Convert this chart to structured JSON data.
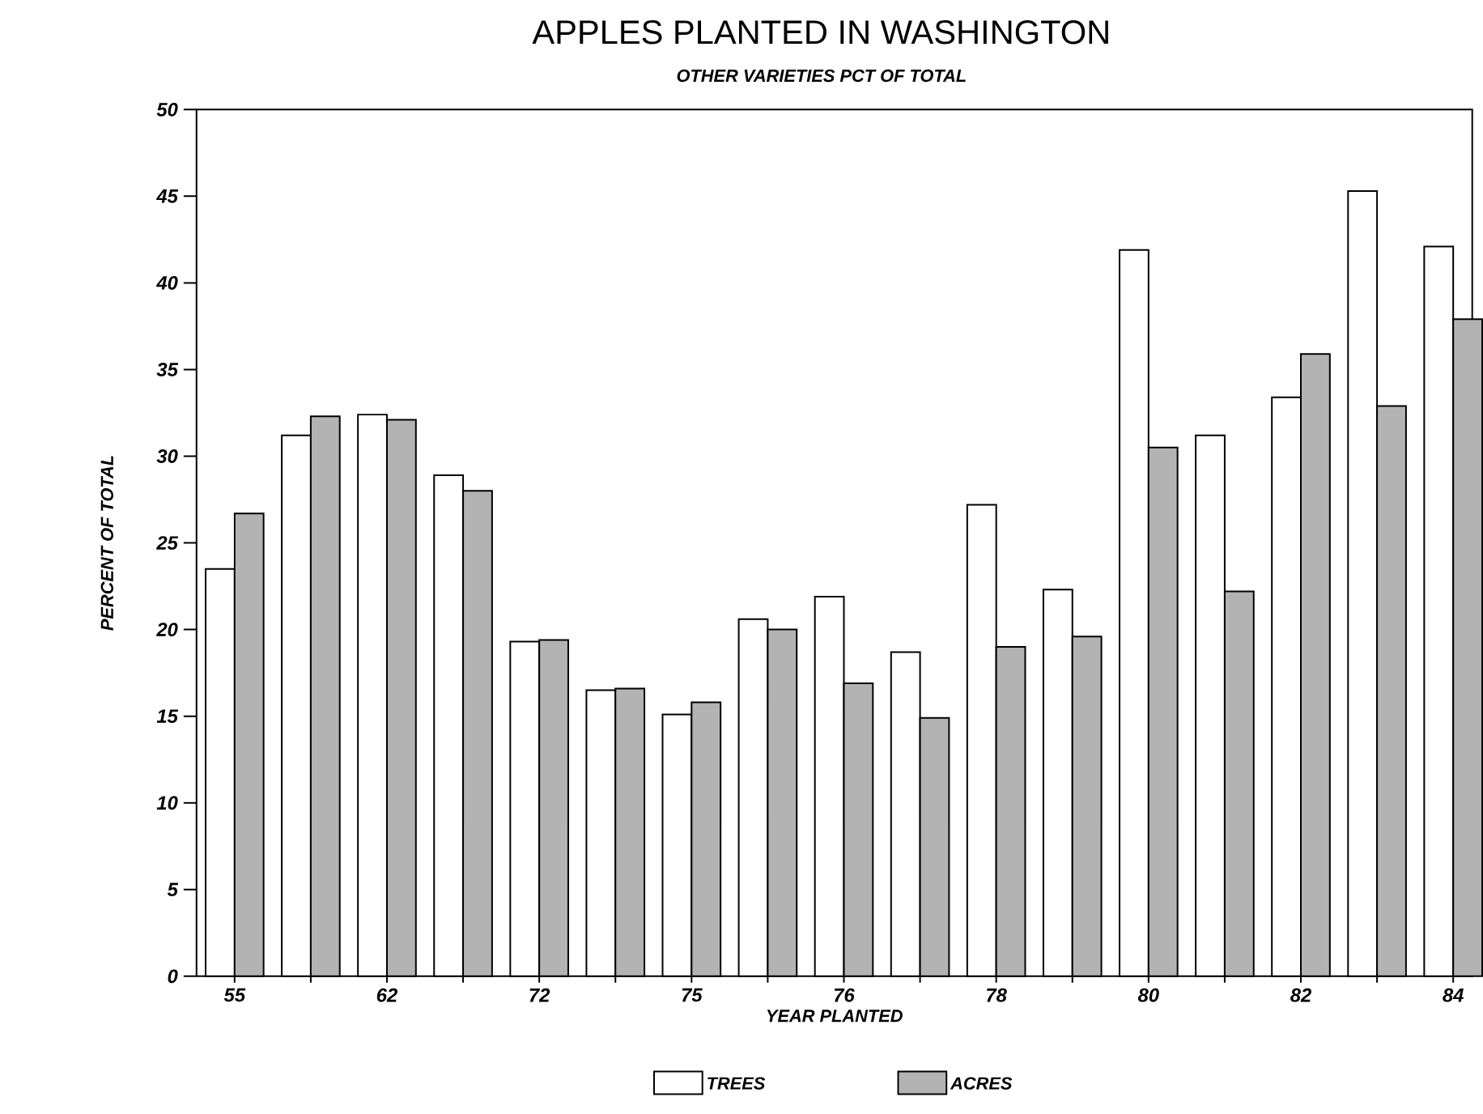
{
  "chart_data": {
    "type": "bar",
    "title": "APPLES PLANTED IN WASHINGTON",
    "subtitle": "OTHER VARIETIES PCT OF TOTAL",
    "xlabel": "YEAR PLANTED",
    "ylabel": "PERCENT OF TOTAL",
    "categories": [
      "55",
      null,
      "62",
      null,
      "72",
      null,
      "75",
      null,
      "76",
      null,
      "78",
      null,
      "80",
      null,
      "82",
      null,
      "84"
    ],
    "series": [
      {
        "name": "TREES",
        "color": "#ffffff",
        "values": [
          23.5,
          31.2,
          32.4,
          28.9,
          19.3,
          16.5,
          15.1,
          20.6,
          21.9,
          18.7,
          27.2,
          22.3,
          41.9,
          31.2,
          33.4,
          45.3,
          42.1
        ]
      },
      {
        "name": "ACRES",
        "color": "#b3b3b3",
        "values": [
          26.7,
          32.3,
          32.1,
          28.0,
          19.4,
          16.6,
          15.8,
          20.0,
          16.9,
          14.9,
          19.0,
          19.6,
          30.5,
          22.2,
          35.9,
          32.9,
          37.9
        ]
      }
    ],
    "ylim": [
      0,
      50
    ],
    "yticks": [
      0,
      5,
      10,
      15,
      20,
      25,
      30,
      35,
      40,
      45,
      50
    ],
    "grid": false,
    "legend": "bottom"
  }
}
